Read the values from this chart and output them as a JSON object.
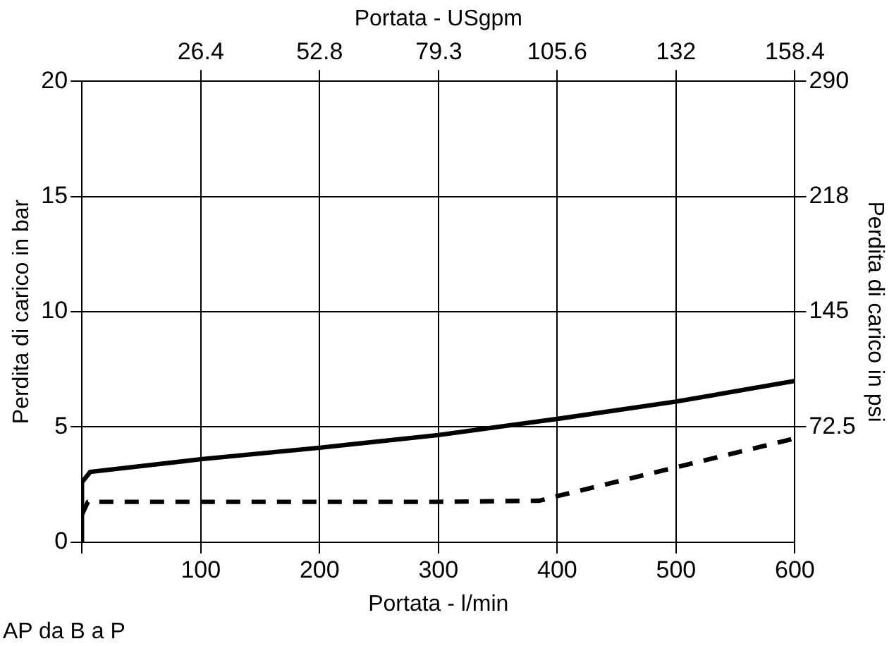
{
  "chart_data": {
    "type": "line",
    "xlabel": "Portata - l/min",
    "x2label": "Portata - USgpm",
    "ylabel": "Perdita di carico in bar",
    "y2label": "Perdita di carico in psi",
    "xlim": [
      0,
      600
    ],
    "xticks": [
      {
        "value": 0,
        "label": null
      },
      100,
      200,
      300,
      400,
      500,
      600
    ],
    "x2lim": [
      0,
      158.4
    ],
    "x2ticks": [
      26.4,
      52.8,
      79.3,
      105.6,
      132,
      158.4
    ],
    "ylim": [
      0,
      20
    ],
    "yticks": [
      0,
      5,
      10,
      15,
      20
    ],
    "y2lim": [
      0,
      290
    ],
    "y2ticks": [
      72.5,
      145,
      {
        "value": 217.5,
        "label": "218"
      },
      290
    ],
    "grid": true,
    "legend": false,
    "marker": "none",
    "series": [
      {
        "color": "#000000",
        "line_style": "solid",
        "x": [
          0,
          0,
          7,
          100,
          200,
          300,
          400,
          500,
          600
        ],
        "values": [
          0,
          2.6,
          3.05,
          3.6,
          4.1,
          4.65,
          5.35,
          6.1,
          7.0
        ]
      },
      {
        "color": "#000000",
        "line_style": "dashed",
        "x": [
          0,
          5,
          100,
          200,
          300,
          385,
          400,
          500,
          600
        ],
        "values": [
          1.2,
          1.75,
          1.75,
          1.75,
          1.75,
          1.8,
          2.0,
          3.25,
          4.5
        ]
      }
    ],
    "annotations": [
      "AP da B a P"
    ]
  }
}
